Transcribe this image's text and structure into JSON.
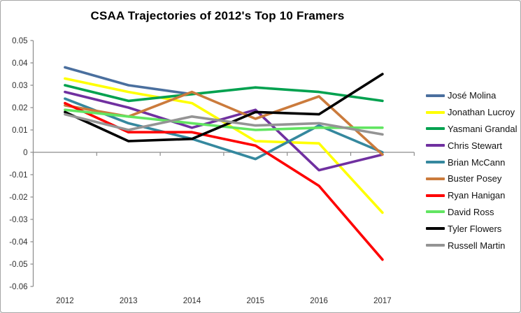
{
  "chart_data": {
    "type": "line",
    "title": "CSAA Trajectories of 2012's Top 10 Framers",
    "x_labels": [
      "2012",
      "2013",
      "2014",
      "2015",
      "2016",
      "2017"
    ],
    "y_axis": {
      "ticks": [
        "0.05",
        "0.04",
        "0.03",
        "0.02",
        "0.01",
        "0",
        "-0.01",
        "-0.02",
        "-0.03",
        "-0.04",
        "-0.05",
        "-0.06"
      ],
      "ylim": [
        -0.06,
        0.05
      ]
    },
    "grid": "zero-line-only",
    "legend_position": "right",
    "axis_color": "#8c8c8c",
    "series": [
      {
        "name": "José Molina",
        "color": "#4a6f9e",
        "values": [
          0.038,
          0.03,
          0.026,
          null,
          null,
          null
        ]
      },
      {
        "name": "Jonathan Lucroy",
        "color": "#ffff00",
        "values": [
          0.033,
          0.027,
          0.022,
          0.005,
          0.004,
          -0.027
        ]
      },
      {
        "name": "Yasmani Grandal",
        "color": "#00a14f",
        "values": [
          0.03,
          0.023,
          0.026,
          0.029,
          0.027,
          0.023
        ]
      },
      {
        "name": "Chris Stewart",
        "color": "#7030a0",
        "values": [
          0.027,
          0.02,
          0.011,
          0.019,
          -0.008,
          -0.001
        ]
      },
      {
        "name": "Brian McCann",
        "color": "#35889e",
        "values": [
          0.024,
          0.013,
          0.006,
          -0.003,
          0.012,
          0.0
        ]
      },
      {
        "name": "Buster Posey",
        "color": "#cb7b3c",
        "values": [
          0.021,
          0.016,
          0.027,
          0.015,
          0.025,
          -0.001
        ]
      },
      {
        "name": "Ryan Hanigan",
        "color": "#fe0000",
        "values": [
          0.022,
          0.009,
          0.009,
          0.003,
          -0.015,
          -0.048
        ]
      },
      {
        "name": "David Ross",
        "color": "#62e562",
        "values": [
          0.019,
          0.016,
          0.013,
          0.01,
          0.011,
          0.011
        ]
      },
      {
        "name": "Tyler Flowers",
        "color": "#000000",
        "values": [
          0.018,
          0.005,
          0.006,
          0.018,
          0.017,
          0.035
        ]
      },
      {
        "name": "Russell Martin",
        "color": "#949494",
        "values": [
          0.017,
          0.01,
          0.016,
          0.012,
          0.013,
          0.008
        ]
      }
    ]
  }
}
